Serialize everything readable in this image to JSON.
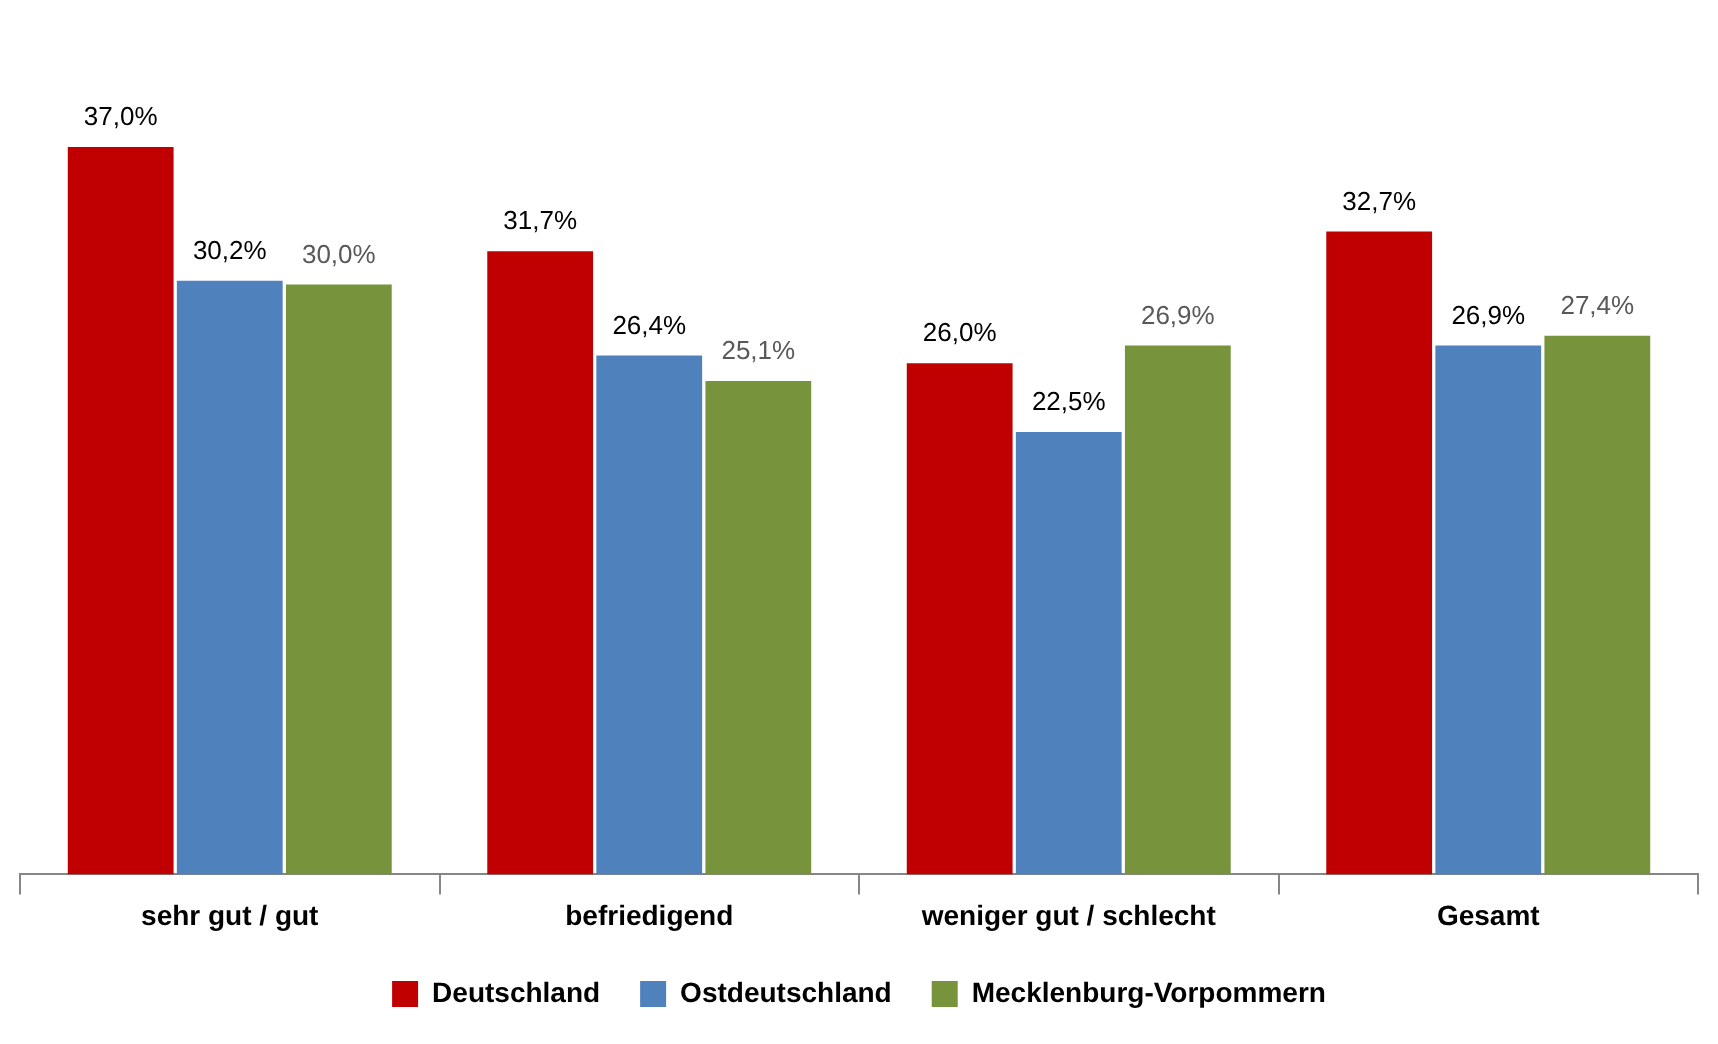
{
  "chart_data": {
    "type": "bar",
    "categories": [
      "sehr gut / gut",
      "befriedigend",
      "weniger gut / schlecht",
      "Gesamt"
    ],
    "series": [
      {
        "name": "Deutschland",
        "color": "#c00000",
        "values": [
          37.0,
          31.7,
          26.0,
          32.7
        ],
        "value_labels": [
          "37,0%",
          "31,7%",
          "26,0%",
          "32,7%"
        ]
      },
      {
        "name": "Ostdeutschland",
        "color": "#4f81bd",
        "values": [
          30.2,
          26.4,
          22.5,
          26.9
        ],
        "value_labels": [
          "30,2%",
          "26,4%",
          "22,5%",
          "26,9%"
        ]
      },
      {
        "name": "Mecklenburg-Vorpommern",
        "color": "#77933c",
        "values": [
          30.0,
          25.1,
          26.9,
          27.4
        ],
        "value_labels": [
          "30,0%",
          "25,1%",
          "26,9%",
          "27,4%"
        ]
      }
    ],
    "legend": "bottom"
  }
}
